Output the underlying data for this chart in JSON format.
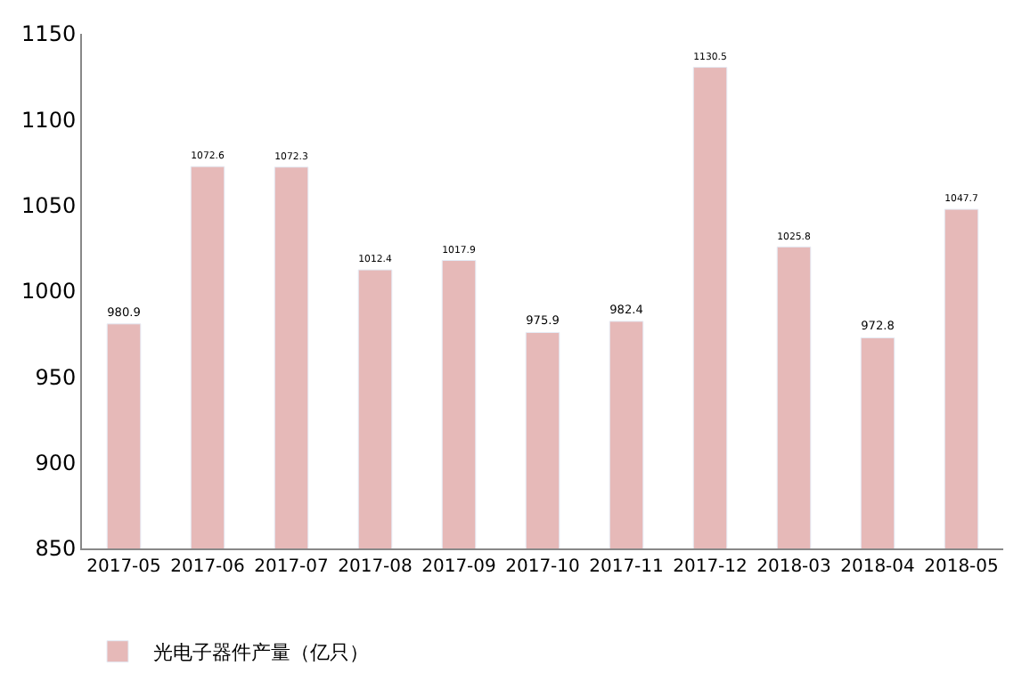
{
  "chart_data": {
    "type": "bar",
    "categories": [
      "2017-05",
      "2017-06",
      "2017-07",
      "2017-08",
      "2017-09",
      "2017-10",
      "2017-11",
      "2017-12",
      "2018-03",
      "2018-04",
      "2018-05"
    ],
    "series": [
      {
        "name": "光电子器件产量（亿只）",
        "color": "#e6b9b8",
        "values": [
          980.9,
          1072.6,
          1072.3,
          1012.4,
          1017.9,
          975.9,
          982.4,
          1130.5,
          1025.8,
          972.8,
          1047.7
        ]
      }
    ],
    "ylim": [
      850,
      1150
    ],
    "yticks": [
      850,
      900,
      950,
      1000,
      1050,
      1100,
      1150
    ],
    "data_labels": true,
    "grid": false,
    "legend": "bottom left"
  }
}
